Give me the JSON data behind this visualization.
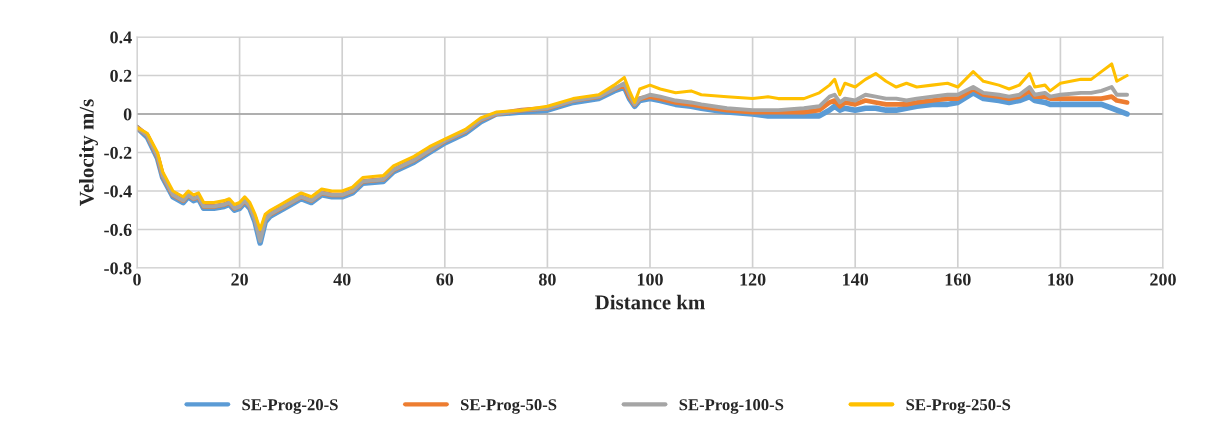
{
  "chart_data": {
    "type": "line",
    "xlabel": "Distance km",
    "ylabel": "Velocity m/s",
    "xlim": [
      0,
      200
    ],
    "xticks": [
      0,
      20,
      40,
      60,
      80,
      100,
      120,
      140,
      160,
      180,
      200
    ],
    "ylim": [
      -0.8,
      0.4
    ],
    "yticks": [
      -0.8,
      -0.6,
      -0.4,
      -0.2,
      0,
      0.2,
      0.4
    ],
    "grid": true,
    "legend": "bottom",
    "marker": "none",
    "line_style": "solid",
    "series": [
      {
        "name": "SE-Prog-20-S",
        "color": "#5b9bd5",
        "x": [
          0,
          2,
          4,
          5,
          7,
          9,
          10,
          11,
          12,
          13,
          15,
          17,
          18,
          19,
          20,
          21,
          22,
          23,
          24,
          25,
          26,
          28,
          30,
          32,
          34,
          36,
          38,
          40,
          42,
          44,
          48,
          50,
          54,
          57,
          60,
          64,
          67,
          70,
          75,
          80,
          85,
          90,
          93,
          95,
          96,
          97,
          98,
          100,
          102,
          105,
          108,
          110,
          115,
          120,
          123,
          125,
          130,
          133,
          135,
          136,
          137,
          138,
          140,
          142,
          144,
          146,
          148,
          150,
          152,
          155,
          158,
          160,
          163,
          165,
          168,
          170,
          172,
          174,
          175,
          177,
          178,
          180,
          184,
          186,
          188,
          190,
          191,
          193
        ],
        "values": [
          -0.07,
          -0.12,
          -0.23,
          -0.33,
          -0.43,
          -0.46,
          -0.43,
          -0.45,
          -0.44,
          -0.49,
          -0.49,
          -0.48,
          -0.47,
          -0.5,
          -0.49,
          -0.46,
          -0.49,
          -0.56,
          -0.67,
          -0.56,
          -0.53,
          -0.5,
          -0.47,
          -0.44,
          -0.46,
          -0.42,
          -0.43,
          -0.43,
          -0.41,
          -0.36,
          -0.35,
          -0.3,
          -0.25,
          -0.2,
          -0.15,
          -0.1,
          -0.04,
          0.0,
          0.01,
          0.02,
          0.06,
          0.08,
          0.12,
          0.14,
          0.08,
          0.04,
          0.07,
          0.08,
          0.07,
          0.05,
          0.04,
          0.03,
          0.01,
          0.0,
          -0.01,
          -0.01,
          -0.01,
          -0.01,
          0.02,
          0.04,
          0.02,
          0.03,
          0.02,
          0.03,
          0.03,
          0.02,
          0.02,
          0.03,
          0.04,
          0.05,
          0.05,
          0.06,
          0.11,
          0.08,
          0.07,
          0.06,
          0.07,
          0.09,
          0.07,
          0.06,
          0.05,
          0.05,
          0.05,
          0.05,
          0.05,
          0.03,
          0.02,
          0.0
        ]
      },
      {
        "name": "SE-Prog-50-S",
        "color": "#ed7d31",
        "x": [
          0,
          2,
          4,
          5,
          7,
          9,
          10,
          11,
          12,
          13,
          15,
          17,
          18,
          19,
          20,
          21,
          22,
          23,
          24,
          25,
          26,
          28,
          30,
          32,
          34,
          36,
          38,
          40,
          42,
          44,
          48,
          50,
          54,
          57,
          60,
          64,
          67,
          70,
          75,
          80,
          85,
          90,
          93,
          95,
          96,
          97,
          98,
          100,
          102,
          105,
          108,
          110,
          115,
          120,
          123,
          125,
          130,
          133,
          135,
          136,
          137,
          138,
          140,
          142,
          144,
          146,
          148,
          150,
          152,
          155,
          158,
          160,
          163,
          165,
          168,
          170,
          172,
          174,
          175,
          177,
          178,
          180,
          184,
          186,
          188,
          190,
          191,
          193
        ],
        "values": [
          -0.07,
          -0.11,
          -0.22,
          -0.32,
          -0.42,
          -0.45,
          -0.42,
          -0.44,
          -0.43,
          -0.48,
          -0.48,
          -0.47,
          -0.46,
          -0.49,
          -0.48,
          -0.45,
          -0.48,
          -0.54,
          -0.64,
          -0.54,
          -0.52,
          -0.49,
          -0.46,
          -0.43,
          -0.45,
          -0.41,
          -0.42,
          -0.42,
          -0.4,
          -0.35,
          -0.34,
          -0.29,
          -0.24,
          -0.19,
          -0.14,
          -0.09,
          -0.03,
          0.0,
          0.02,
          0.03,
          0.07,
          0.09,
          0.13,
          0.15,
          0.09,
          0.05,
          0.08,
          0.09,
          0.08,
          0.06,
          0.05,
          0.04,
          0.02,
          0.01,
          0.01,
          0.01,
          0.01,
          0.02,
          0.06,
          0.07,
          0.04,
          0.06,
          0.05,
          0.07,
          0.06,
          0.05,
          0.05,
          0.05,
          0.06,
          0.07,
          0.08,
          0.08,
          0.13,
          0.1,
          0.09,
          0.08,
          0.09,
          0.12,
          0.09,
          0.09,
          0.08,
          0.08,
          0.08,
          0.08,
          0.08,
          0.09,
          0.07,
          0.06
        ]
      },
      {
        "name": "SE-Prog-100-S",
        "color": "#a5a5a5",
        "x": [
          0,
          2,
          4,
          5,
          7,
          9,
          10,
          11,
          12,
          13,
          15,
          17,
          18,
          19,
          20,
          21,
          22,
          23,
          24,
          25,
          26,
          28,
          30,
          32,
          34,
          36,
          38,
          40,
          42,
          44,
          48,
          50,
          54,
          57,
          60,
          64,
          67,
          70,
          75,
          80,
          85,
          90,
          93,
          95,
          96,
          97,
          98,
          100,
          102,
          105,
          108,
          110,
          115,
          120,
          123,
          125,
          130,
          133,
          135,
          136,
          137,
          138,
          140,
          142,
          144,
          146,
          148,
          150,
          152,
          155,
          158,
          160,
          163,
          165,
          168,
          170,
          172,
          174,
          175,
          177,
          178,
          180,
          184,
          186,
          188,
          190,
          191,
          193
        ],
        "values": [
          -0.07,
          -0.11,
          -0.22,
          -0.32,
          -0.42,
          -0.45,
          -0.42,
          -0.44,
          -0.43,
          -0.48,
          -0.48,
          -0.47,
          -0.46,
          -0.49,
          -0.48,
          -0.45,
          -0.48,
          -0.55,
          -0.66,
          -0.55,
          -0.52,
          -0.49,
          -0.46,
          -0.43,
          -0.45,
          -0.41,
          -0.42,
          -0.42,
          -0.4,
          -0.35,
          -0.34,
          -0.29,
          -0.24,
          -0.19,
          -0.14,
          -0.09,
          -0.03,
          0.0,
          0.02,
          0.03,
          0.07,
          0.09,
          0.13,
          0.16,
          0.1,
          0.05,
          0.08,
          0.1,
          0.09,
          0.07,
          0.06,
          0.05,
          0.03,
          0.02,
          0.02,
          0.02,
          0.03,
          0.04,
          0.09,
          0.1,
          0.06,
          0.08,
          0.07,
          0.1,
          0.09,
          0.08,
          0.08,
          0.07,
          0.08,
          0.09,
          0.1,
          0.1,
          0.14,
          0.11,
          0.1,
          0.09,
          0.1,
          0.14,
          0.1,
          0.11,
          0.09,
          0.1,
          0.11,
          0.11,
          0.12,
          0.14,
          0.1,
          0.1
        ]
      },
      {
        "name": "SE-Prog-250-S",
        "color": "#ffc000",
        "x": [
          0,
          2,
          4,
          5,
          7,
          9,
          10,
          11,
          12,
          13,
          15,
          17,
          18,
          19,
          20,
          21,
          22,
          23,
          24,
          25,
          26,
          28,
          30,
          32,
          34,
          36,
          38,
          40,
          42,
          44,
          48,
          50,
          54,
          57,
          60,
          64,
          67,
          70,
          75,
          80,
          85,
          90,
          93,
          95,
          96,
          97,
          98,
          100,
          102,
          105,
          108,
          110,
          115,
          120,
          123,
          125,
          130,
          133,
          135,
          136,
          137,
          138,
          140,
          142,
          144,
          146,
          148,
          150,
          152,
          155,
          158,
          160,
          163,
          165,
          168,
          170,
          172,
          174,
          175,
          177,
          178,
          180,
          184,
          186,
          188,
          190,
          191,
          193
        ],
        "values": [
          -0.07,
          -0.1,
          -0.2,
          -0.3,
          -0.4,
          -0.43,
          -0.4,
          -0.42,
          -0.41,
          -0.46,
          -0.46,
          -0.45,
          -0.44,
          -0.47,
          -0.46,
          -0.43,
          -0.46,
          -0.52,
          -0.6,
          -0.52,
          -0.5,
          -0.47,
          -0.44,
          -0.41,
          -0.43,
          -0.39,
          -0.4,
          -0.4,
          -0.38,
          -0.33,
          -0.32,
          -0.27,
          -0.22,
          -0.17,
          -0.13,
          -0.08,
          -0.02,
          0.01,
          0.02,
          0.04,
          0.08,
          0.1,
          0.15,
          0.19,
          0.12,
          0.06,
          0.13,
          0.15,
          0.13,
          0.11,
          0.12,
          0.1,
          0.09,
          0.08,
          0.09,
          0.08,
          0.08,
          0.11,
          0.15,
          0.18,
          0.1,
          0.16,
          0.14,
          0.18,
          0.21,
          0.17,
          0.14,
          0.16,
          0.14,
          0.15,
          0.16,
          0.14,
          0.22,
          0.17,
          0.15,
          0.13,
          0.15,
          0.21,
          0.14,
          0.15,
          0.12,
          0.16,
          0.18,
          0.18,
          0.22,
          0.26,
          0.17,
          0.2
        ]
      }
    ]
  }
}
